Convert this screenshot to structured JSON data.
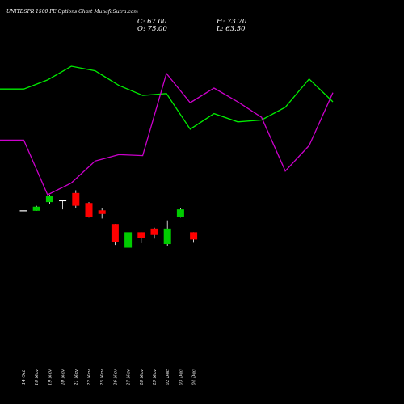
{
  "title": "UNITDSPR 1500  PE Options  Chart MunafaSutra.com",
  "ohlc": {
    "C": "C: 67.00",
    "H": "H: 73.70",
    "O": "O: 75.00",
    "L": "L: 63.50"
  },
  "colors": {
    "up": "#00cc00",
    "down": "#ff0000",
    "doji": "#ffffff",
    "upper_band": "#00ee00",
    "lower_band": "#cc00cc",
    "wick": "#ffffff"
  },
  "chart_data": {
    "type": "candlestick",
    "categories": [
      "14 Oct",
      "18 Nov",
      "19 Nov",
      "20 Nov",
      "21 Nov",
      "22 Nov",
      "25 Nov",
      "26 Nov",
      "27 Nov",
      "28 Nov",
      "29 Nov",
      "02 Dec",
      "03 Dec",
      "04 Dec"
    ],
    "candles": [
      {
        "open": 99,
        "high": 99,
        "low": 99,
        "close": 99
      },
      {
        "open": 98.5,
        "high": 104,
        "low": 98.5,
        "close": 103
      },
      {
        "open": 108,
        "high": 116,
        "low": 106,
        "close": 115
      },
      {
        "open": 110,
        "high": 110,
        "low": 100,
        "close": 110
      },
      {
        "open": 118,
        "high": 121,
        "low": 101,
        "close": 104
      },
      {
        "open": 107,
        "high": 108,
        "low": 91,
        "close": 92
      },
      {
        "open": 99,
        "high": 101,
        "low": 90,
        "close": 95
      },
      {
        "open": 84,
        "high": 84,
        "low": 61,
        "close": 64
      },
      {
        "open": 58,
        "high": 77,
        "low": 55,
        "close": 75
      },
      {
        "open": 75,
        "high": 75,
        "low": 63,
        "close": 69
      },
      {
        "open": 79,
        "high": 80,
        "low": 68,
        "close": 72
      },
      {
        "open": 62,
        "high": 88,
        "low": 60,
        "close": 79
      },
      {
        "open": 92,
        "high": 101,
        "low": 91,
        "close": 100
      },
      {
        "open": 75,
        "high": 73.7,
        "low": 63.5,
        "close": 67
      }
    ],
    "upper_band": [
      232,
      232,
      242,
      257,
      252,
      236,
      225,
      227,
      188,
      205,
      196,
      198,
      212,
      243,
      218
    ],
    "lower_band": [
      176,
      176,
      116,
      129,
      153,
      160,
      159,
      249,
      217,
      233,
      218,
      201,
      142,
      170,
      228
    ],
    "ylim": [
      0,
      280
    ]
  }
}
